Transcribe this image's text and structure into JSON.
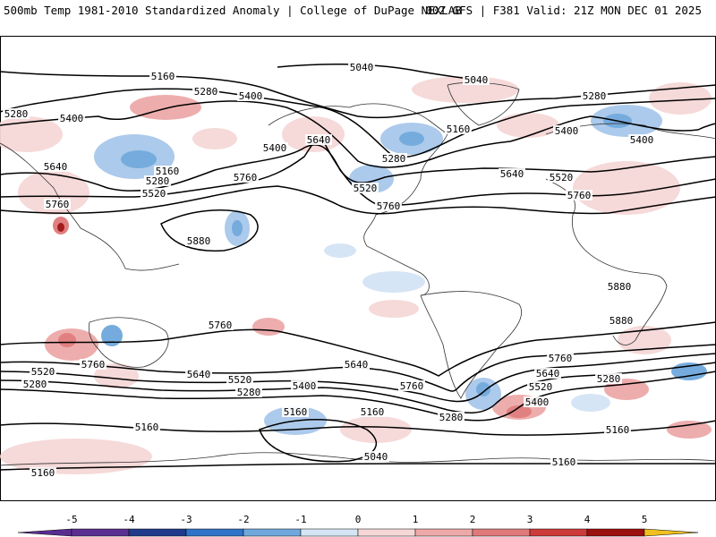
{
  "header": {
    "title_left": "500mb Temp 1981-2010 Standardized Anomaly | College of DuPage NEXLAB",
    "title_right": "00Z GFS | F381 Valid: 21Z MON DEC 01 2025"
  },
  "colors": {
    "anom_neg": [
      "#5a2d91",
      "#1f3a8a",
      "#2f74c8",
      "#6fa8dc",
      "#a8c8ea",
      "#d4e4f5"
    ],
    "anom_pos": [
      "#f6d7d7",
      "#eda9a9",
      "#e07a7a",
      "#cc3a3a",
      "#9c1010",
      "#f0c020"
    ],
    "contour": "#000000",
    "coast": "#333333"
  },
  "colorbar": {
    "ticks": [
      "-5",
      "-4",
      "-3",
      "-2",
      "-1",
      "0",
      "1",
      "2",
      "3",
      "4",
      "5"
    ]
  },
  "contour_labels": [
    {
      "text": "5160",
      "label": "nw-pacific-5160"
    },
    {
      "text": "5040",
      "label": "arctic-5040"
    },
    {
      "text": "5040",
      "label": "greenland-5040"
    },
    {
      "text": "5280",
      "label": "w-asia-5280"
    },
    {
      "text": "5400",
      "label": "w-asia-5400"
    },
    {
      "text": "5280",
      "label": "pacific-5280"
    },
    {
      "text": "5400",
      "label": "pacific-5400"
    },
    {
      "text": "5640",
      "label": "asia-5640"
    },
    {
      "text": "5160",
      "label": "kamchatka-5160"
    },
    {
      "text": "5280",
      "label": "kamchatka-5280"
    },
    {
      "text": "5520",
      "label": "kamchatka-5520"
    },
    {
      "text": "5400",
      "label": "gulf-alaska-5400"
    },
    {
      "text": "5640",
      "label": "alaska-5640"
    },
    {
      "text": "5760",
      "label": "pacific-5760"
    },
    {
      "text": "5760",
      "label": "india-5760"
    },
    {
      "text": "5880",
      "label": "pacific-5880"
    },
    {
      "text": "5280",
      "label": "hudson-5280"
    },
    {
      "text": "5160",
      "label": "labrador-5160"
    },
    {
      "text": "5520",
      "label": "us-5520"
    },
    {
      "text": "5760",
      "label": "gulf-5760"
    },
    {
      "text": "5280",
      "label": "europe-5280"
    },
    {
      "text": "5400",
      "label": "atlantic-5400"
    },
    {
      "text": "5400",
      "label": "russia-5400"
    },
    {
      "text": "5640",
      "label": "atlantic-5640"
    },
    {
      "text": "5520",
      "label": "europe-5520"
    },
    {
      "text": "5760",
      "label": "africa-5760"
    },
    {
      "text": "5880",
      "label": "e-africa-5880"
    },
    {
      "text": "5880",
      "label": "madagascar-5880"
    },
    {
      "text": "5760",
      "label": "s-pacific-5760"
    },
    {
      "text": "5760",
      "label": "australia-5760"
    },
    {
      "text": "5520",
      "label": "s-indian-5520"
    },
    {
      "text": "5280",
      "label": "s-indian-5280"
    },
    {
      "text": "5640",
      "label": "tasman-5640"
    },
    {
      "text": "5520",
      "label": "s-pacific-5520"
    },
    {
      "text": "5280",
      "label": "s-pacific-5280"
    },
    {
      "text": "5400",
      "label": "s-pacific-5400"
    },
    {
      "text": "5640",
      "label": "e-pacific-5640"
    },
    {
      "text": "5760",
      "label": "chile-5760"
    },
    {
      "text": "5160",
      "label": "ross-5160"
    },
    {
      "text": "5040",
      "label": "antarctic-5040"
    },
    {
      "text": "5160",
      "label": "amundsen-5160"
    },
    {
      "text": "5280",
      "label": "drake-5280"
    },
    {
      "text": "5160",
      "label": "s-indian-5160"
    },
    {
      "text": "5160",
      "label": "antarctic-w-5160"
    },
    {
      "text": "5760",
      "label": "s-atlantic-5760"
    },
    {
      "text": "5640",
      "label": "s-atlantic-5640"
    },
    {
      "text": "5520",
      "label": "s-atlantic-5520"
    },
    {
      "text": "5400",
      "label": "s-atlantic-5400"
    },
    {
      "text": "5280",
      "label": "s-africa-5280"
    },
    {
      "text": "5160",
      "label": "s-africa-5160"
    },
    {
      "text": "5160",
      "label": "weddell-5160"
    }
  ]
}
